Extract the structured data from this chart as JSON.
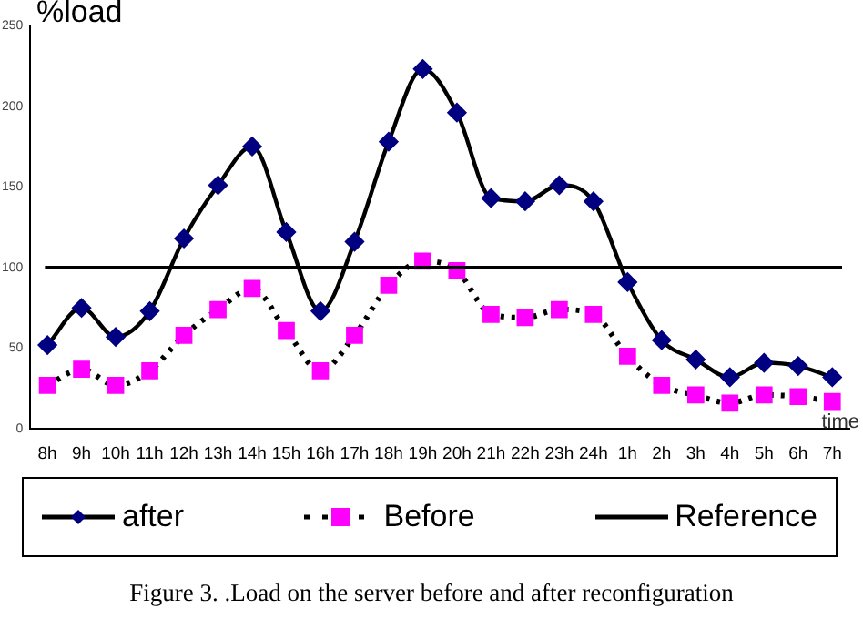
{
  "chart_data": {
    "type": "line",
    "ylabel": "%load",
    "xlabel": "time",
    "categories": [
      "8h",
      "9h",
      "10h",
      "11h",
      "12h",
      "13h",
      "14h",
      "15h",
      "16h",
      "17h",
      "18h",
      "19h",
      "20h",
      "21h",
      "22h",
      "23h",
      "24h",
      "1h",
      "2h",
      "3h",
      "4h",
      "5h",
      "6h",
      "7h"
    ],
    "series": [
      {
        "name": "after",
        "color": "#000080",
        "marker": "diamond",
        "line_style": "solid",
        "values": [
          52,
          75,
          57,
          73,
          118,
          151,
          175,
          122,
          73,
          116,
          178,
          223,
          196,
          143,
          141,
          151,
          141,
          91,
          55,
          43,
          32,
          41,
          39,
          32
        ]
      },
      {
        "name": "Before",
        "color": "#ff00ff",
        "marker": "square",
        "line_style": "dotted",
        "values": [
          27,
          37,
          27,
          36,
          58,
          74,
          87,
          61,
          36,
          58,
          89,
          104,
          98,
          71,
          69,
          74,
          71,
          45,
          27,
          21,
          16,
          21,
          20,
          17
        ]
      }
    ],
    "ref_lines": [
      {
        "axis": "y",
        "value": 100,
        "label": "Reference",
        "color": "#000000"
      }
    ],
    "ylim": [
      0,
      250
    ],
    "yticks": [
      0,
      50,
      100,
      150,
      200,
      250
    ],
    "grid": false,
    "legend": "bottom",
    "annotations": [
      "Figure 3. .Load on the server before and after reconfiguration"
    ]
  }
}
